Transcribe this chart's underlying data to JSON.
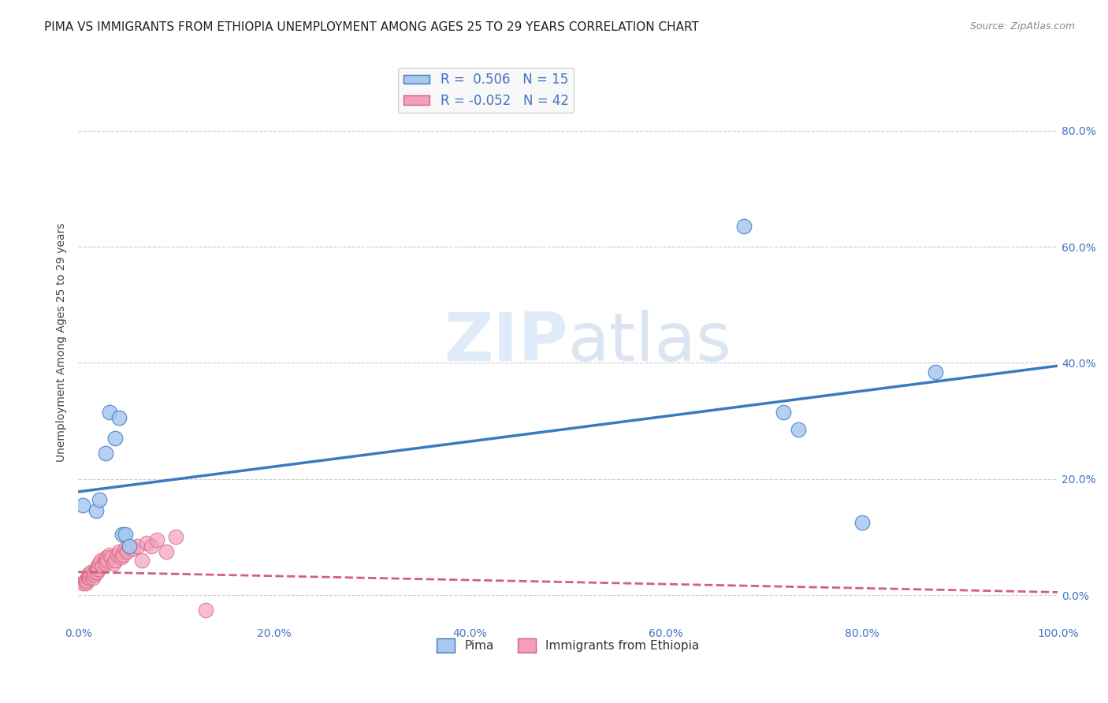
{
  "title": "PIMA VS IMMIGRANTS FROM ETHIOPIA UNEMPLOYMENT AMONG AGES 25 TO 29 YEARS CORRELATION CHART",
  "source": "Source: ZipAtlas.com",
  "ylabel": "Unemployment Among Ages 25 to 29 years",
  "xlim": [
    0.0,
    1.0
  ],
  "ylim": [
    -0.05,
    0.92
  ],
  "xticks": [
    0.0,
    0.2,
    0.4,
    0.6,
    0.8,
    1.0
  ],
  "xtick_labels": [
    "0.0%",
    "20.0%",
    "40.0%",
    "60.0%",
    "80.0%",
    "100.0%"
  ],
  "yticks": [
    0.0,
    0.2,
    0.4,
    0.6,
    0.8
  ],
  "ytick_labels": [
    "0.0%",
    "20.0%",
    "40.0%",
    "60.0%",
    "80.0%"
  ],
  "pima_color": "#a8c8f0",
  "ethiopia_color": "#f4a0b8",
  "pima_line_color": "#3a7abf",
  "ethiopia_line_color": "#d06080",
  "legend_pima_label": "R =  0.506   N = 15",
  "legend_ethiopia_label": "R = -0.052   N = 42",
  "watermark_zip": "ZIP",
  "watermark_atlas": "atlas",
  "pima_x": [
    0.018,
    0.022,
    0.028,
    0.032,
    0.038,
    0.042,
    0.045,
    0.048,
    0.052,
    0.68,
    0.72,
    0.735,
    0.8,
    0.875,
    0.005
  ],
  "pima_y": [
    0.145,
    0.165,
    0.245,
    0.315,
    0.27,
    0.305,
    0.105,
    0.105,
    0.085,
    0.635,
    0.315,
    0.285,
    0.125,
    0.385,
    0.155
  ],
  "ethiopia_x": [
    0.005,
    0.007,
    0.008,
    0.009,
    0.01,
    0.01,
    0.011,
    0.012,
    0.013,
    0.015,
    0.016,
    0.017,
    0.018,
    0.019,
    0.02,
    0.021,
    0.022,
    0.023,
    0.025,
    0.027,
    0.028,
    0.029,
    0.03,
    0.032,
    0.034,
    0.036,
    0.038,
    0.04,
    0.042,
    0.044,
    0.046,
    0.048,
    0.05,
    0.055,
    0.06,
    0.065,
    0.07,
    0.075,
    0.08,
    0.09,
    0.1,
    0.13
  ],
  "ethiopia_y": [
    0.02,
    0.025,
    0.02,
    0.025,
    0.03,
    0.035,
    0.03,
    0.035,
    0.04,
    0.03,
    0.035,
    0.04,
    0.045,
    0.04,
    0.05,
    0.045,
    0.055,
    0.06,
    0.05,
    0.06,
    0.055,
    0.065,
    0.06,
    0.07,
    0.065,
    0.055,
    0.06,
    0.07,
    0.075,
    0.065,
    0.07,
    0.08,
    0.075,
    0.08,
    0.085,
    0.06,
    0.09,
    0.085,
    0.095,
    0.075,
    0.1,
    -0.025
  ],
  "bg_color": "#ffffff",
  "grid_color": "#cccccc",
  "tick_color": "#4472c4",
  "title_fontsize": 11,
  "axis_label_fontsize": 10,
  "tick_fontsize": 10,
  "legend_fontsize": 12,
  "pima_line_x0": 0.0,
  "pima_line_y0": 0.178,
  "pima_line_x1": 1.0,
  "pima_line_y1": 0.395,
  "ethiopia_line_x0": 0.0,
  "ethiopia_line_y0": 0.04,
  "ethiopia_line_x1": 1.0,
  "ethiopia_line_y1": 0.005
}
